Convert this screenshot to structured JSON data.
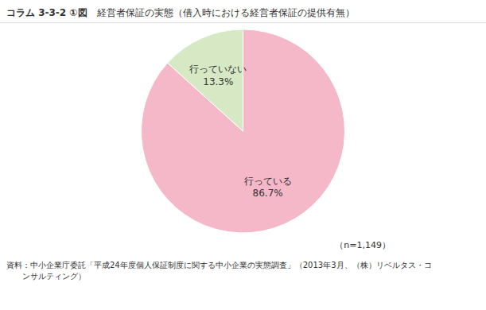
{
  "chart_data": {
    "type": "pie",
    "title": "経営者保証の実態（借入時における経営者保証の提供有無）",
    "subtitle": "コラム 3-3-2 ①図",
    "categories": [
      "行っている",
      "行っていない"
    ],
    "values": [
      86.7,
      13.3
    ],
    "value_labels": [
      "86.7%",
      "13.3%"
    ],
    "colors": [
      "#f4b8c8",
      "#d6e8c4"
    ],
    "data_labels": true,
    "annotations": [
      "（n=1,149）",
      "資料：中小企業庁委託「平成24年度個人保証制度に関する中小企業の実態調査」（2013年3月、（株）リベルタス・コ\n　　ンサルティング）"
    ]
  }
}
